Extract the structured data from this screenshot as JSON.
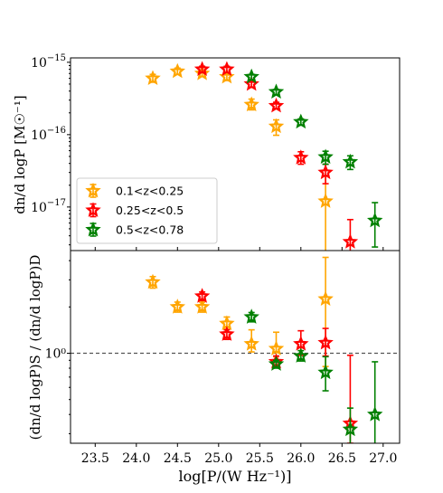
{
  "chart_data": {
    "type": "scatter",
    "xlabel": "log[P/(W Hz⁻¹)]",
    "xlim": [
      23.2,
      27.2
    ],
    "xticks": [
      23.5,
      24.0,
      24.5,
      25.0,
      25.5,
      26.0,
      26.5,
      27.0
    ],
    "legend_position": "lower-left of top panel",
    "panels": [
      {
        "name": "top",
        "ylabel": "dn/d logP [M☉⁻¹]",
        "yscale": "log",
        "ylim": [
          2.5e-18,
          1.15e-15
        ],
        "yticks": [
          {
            "value": 1e-15,
            "base": "10",
            "exp": "−15"
          },
          {
            "value": 1e-16,
            "base": "10",
            "exp": "−16"
          },
          {
            "value": 1e-17,
            "base": "10",
            "exp": "−17"
          }
        ],
        "series": [
          {
            "name": "0.1<z<0.25",
            "color": "#FFA500",
            "points": [
              {
                "x": 24.2,
                "y": 6e-16,
                "lo": 5.3e-16,
                "hi": 6.8e-16
              },
              {
                "x": 24.5,
                "y": 7.5e-16,
                "lo": 6.8e-16,
                "hi": 8.3e-16
              },
              {
                "x": 24.8,
                "y": 7e-16,
                "lo": 6.4e-16,
                "hi": 7.7e-16
              },
              {
                "x": 25.1,
                "y": 6.3e-16,
                "lo": 5.6e-16,
                "hi": 7e-16
              },
              {
                "x": 25.4,
                "y": 2.6e-16,
                "lo": 2.2e-16,
                "hi": 3.1e-16
              },
              {
                "x": 25.7,
                "y": 1.3e-16,
                "lo": 9.8e-17,
                "hi": 1.6e-16
              },
              {
                "x": 26.3,
                "y": 1.2e-17,
                "lo": 1e-19,
                "hi": 2.7e-17
              }
            ]
          },
          {
            "name": "0.25<z<0.5",
            "color": "#FF0000",
            "points": [
              {
                "x": 24.8,
                "y": 8e-16,
                "lo": 7.3e-16,
                "hi": 8.8e-16
              },
              {
                "x": 25.1,
                "y": 8e-16,
                "lo": 7.3e-16,
                "hi": 8.8e-16
              },
              {
                "x": 25.4,
                "y": 5e-16,
                "lo": 4.5e-16,
                "hi": 5.6e-16
              },
              {
                "x": 25.7,
                "y": 2.5e-16,
                "lo": 2.3e-16,
                "hi": 2.8e-16
              },
              {
                "x": 26.0,
                "y": 4.8e-17,
                "lo": 3.9e-17,
                "hi": 5.8e-17
              },
              {
                "x": 26.3,
                "y": 3e-17,
                "lo": 2.1e-17,
                "hi": 3.9e-17
              },
              {
                "x": 26.6,
                "y": 3.3e-18,
                "lo": 1e-19,
                "hi": 6.7e-18
              }
            ]
          },
          {
            "name": "0.5<z<0.78",
            "color": "#008000",
            "points": [
              {
                "x": 25.4,
                "y": 6.3e-16,
                "lo": 5.8e-16,
                "hi": 6.8e-16
              },
              {
                "x": 25.7,
                "y": 3.9e-16,
                "lo": 3.6e-16,
                "hi": 4.2e-16
              },
              {
                "x": 26.0,
                "y": 1.5e-16,
                "lo": 1.35e-16,
                "hi": 1.65e-16
              },
              {
                "x": 26.3,
                "y": 4.9e-17,
                "lo": 3.9e-17,
                "hi": 5.9e-17
              },
              {
                "x": 26.6,
                "y": 4.2e-17,
                "lo": 3.3e-17,
                "hi": 5.1e-17
              },
              {
                "x": 26.9,
                "y": 6.5e-18,
                "lo": 2.8e-18,
                "hi": 1.15e-17
              }
            ]
          }
        ]
      },
      {
        "name": "bottom",
        "ylabel": "(dn/d logP)S / (dn/d logP)D",
        "yscale": "log",
        "ylim": [
          0.26,
          4.65
        ],
        "yticks": [
          {
            "value": 1,
            "label": "10⁰"
          }
        ],
        "reference_line": 1,
        "series": [
          {
            "name": "0.1<z<0.25",
            "color": "#FFA500",
            "points": [
              {
                "x": 24.2,
                "y": 2.9,
                "lo": 2.65,
                "hi": 3.15
              },
              {
                "x": 24.5,
                "y": 2.0,
                "lo": 1.85,
                "hi": 2.15
              },
              {
                "x": 24.8,
                "y": 2.0,
                "lo": 1.85,
                "hi": 2.15
              },
              {
                "x": 25.1,
                "y": 1.56,
                "lo": 1.43,
                "hi": 1.72
              },
              {
                "x": 25.4,
                "y": 1.15,
                "lo": 1.02,
                "hi": 1.42
              },
              {
                "x": 25.7,
                "y": 1.07,
                "lo": 0.95,
                "hi": 1.37
              },
              {
                "x": 26.3,
                "y": 2.25,
                "lo": 0.82,
                "hi": 4.2
              }
            ]
          },
          {
            "name": "0.25<z<0.5",
            "color": "#FF0000",
            "points": [
              {
                "x": 24.8,
                "y": 2.35,
                "lo": 2.2,
                "hi": 2.5
              },
              {
                "x": 25.1,
                "y": 1.33,
                "lo": 1.23,
                "hi": 1.42
              },
              {
                "x": 25.7,
                "y": 0.88,
                "lo": 0.82,
                "hi": 0.96
              },
              {
                "x": 26.0,
                "y": 1.15,
                "lo": 0.97,
                "hi": 1.4
              },
              {
                "x": 26.3,
                "y": 1.17,
                "lo": 0.96,
                "hi": 1.45
              },
              {
                "x": 26.6,
                "y": 0.35,
                "lo": 0.26,
                "hi": 0.97
              }
            ]
          },
          {
            "name": "0.5<z<0.78",
            "color": "#008000",
            "points": [
              {
                "x": 25.4,
                "y": 1.72,
                "lo": 1.6,
                "hi": 1.84
              },
              {
                "x": 25.7,
                "y": 0.85,
                "lo": 0.8,
                "hi": 0.9
              },
              {
                "x": 26.0,
                "y": 0.96,
                "lo": 0.89,
                "hi": 1.04
              },
              {
                "x": 26.3,
                "y": 0.75,
                "lo": 0.57,
                "hi": 0.95
              },
              {
                "x": 26.6,
                "y": 0.32,
                "lo": 0.21,
                "hi": 0.44
              },
              {
                "x": 26.9,
                "y": 0.4,
                "lo": 0.22,
                "hi": 0.88
              }
            ]
          }
        ]
      }
    ]
  }
}
